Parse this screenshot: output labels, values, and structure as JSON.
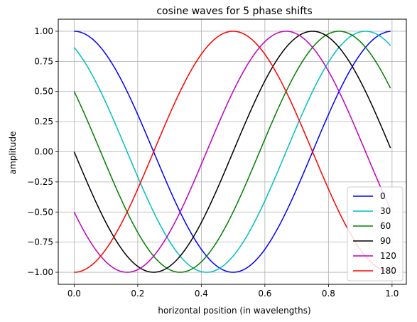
{
  "chart_data": {
    "type": "line",
    "title": "cosine waves for 5 phase shifts",
    "xlabel": "horizontal position (in wavelengths)",
    "ylabel": "amplitude",
    "xlim": [
      -0.05,
      1.045
    ],
    "ylim": [
      -1.1,
      1.1
    ],
    "x_ticks": [
      0.0,
      0.2,
      0.4,
      0.6,
      0.8,
      1.0
    ],
    "x_tick_labels": [
      "0.0",
      "0.2",
      "0.4",
      "0.6",
      "0.8",
      "1.0"
    ],
    "y_ticks": [
      -1.0,
      -0.75,
      -0.5,
      -0.25,
      0.0,
      0.25,
      0.5,
      0.75,
      1.0
    ],
    "y_tick_labels": [
      "−1.00",
      "−0.75",
      "−0.50",
      "−0.25",
      "0.00",
      "0.25",
      "0.50",
      "0.75",
      "1.00"
    ],
    "grid": true,
    "legend_position": "lower-right",
    "x_range": [
      0.0,
      0.995
    ],
    "series": [
      {
        "name": "0",
        "phase_degrees": 0,
        "color": "#0000ff"
      },
      {
        "name": "30",
        "phase_degrees": 30,
        "color": "#00bfbf"
      },
      {
        "name": "60",
        "phase_degrees": 60,
        "color": "#008000"
      },
      {
        "name": "90",
        "phase_degrees": 90,
        "color": "#000000"
      },
      {
        "name": "120",
        "phase_degrees": 120,
        "color": "#bf00bf"
      },
      {
        "name": "180",
        "phase_degrees": 180,
        "color": "#ff0000"
      }
    ]
  }
}
